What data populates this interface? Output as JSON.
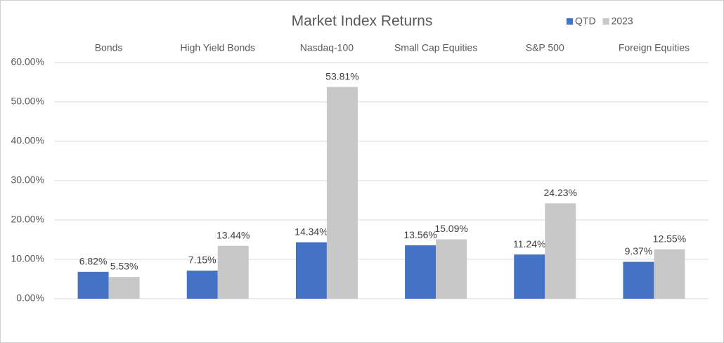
{
  "chart_data": {
    "type": "bar",
    "title": "Market Index Returns",
    "categories": [
      "Bonds",
      "High Yield Bonds",
      "Nasdaq-100",
      "Small Cap Equities",
      "S&P 500",
      "Foreign Equities"
    ],
    "series": [
      {
        "name": "QTD",
        "color": "#4472c4",
        "values": [
          6.82,
          7.15,
          14.34,
          13.56,
          11.24,
          9.37
        ],
        "value_labels": [
          "6.82%",
          "7.15%",
          "14.34%",
          "13.56%",
          "11.24%",
          "9.37%"
        ]
      },
      {
        "name": "2023",
        "color": "#c8c8c8",
        "values": [
          5.53,
          13.44,
          53.81,
          15.09,
          24.23,
          12.55
        ],
        "value_labels": [
          "5.53%",
          "13.44%",
          "53.81%",
          "15.09%",
          "24.23%",
          "12.55%"
        ]
      }
    ],
    "ylim": [
      0,
      60
    ],
    "yticks": [
      {
        "value": 0,
        "label": "0.00%"
      },
      {
        "value": 10,
        "label": "10.00%"
      },
      {
        "value": 20,
        "label": "20.00%"
      },
      {
        "value": 30,
        "label": "30.00%"
      },
      {
        "value": 40,
        "label": "40.00%"
      },
      {
        "value": 50,
        "label": "50.00%"
      },
      {
        "value": 60,
        "label": "60.00%"
      }
    ],
    "grid": true,
    "legend": "top-right"
  }
}
